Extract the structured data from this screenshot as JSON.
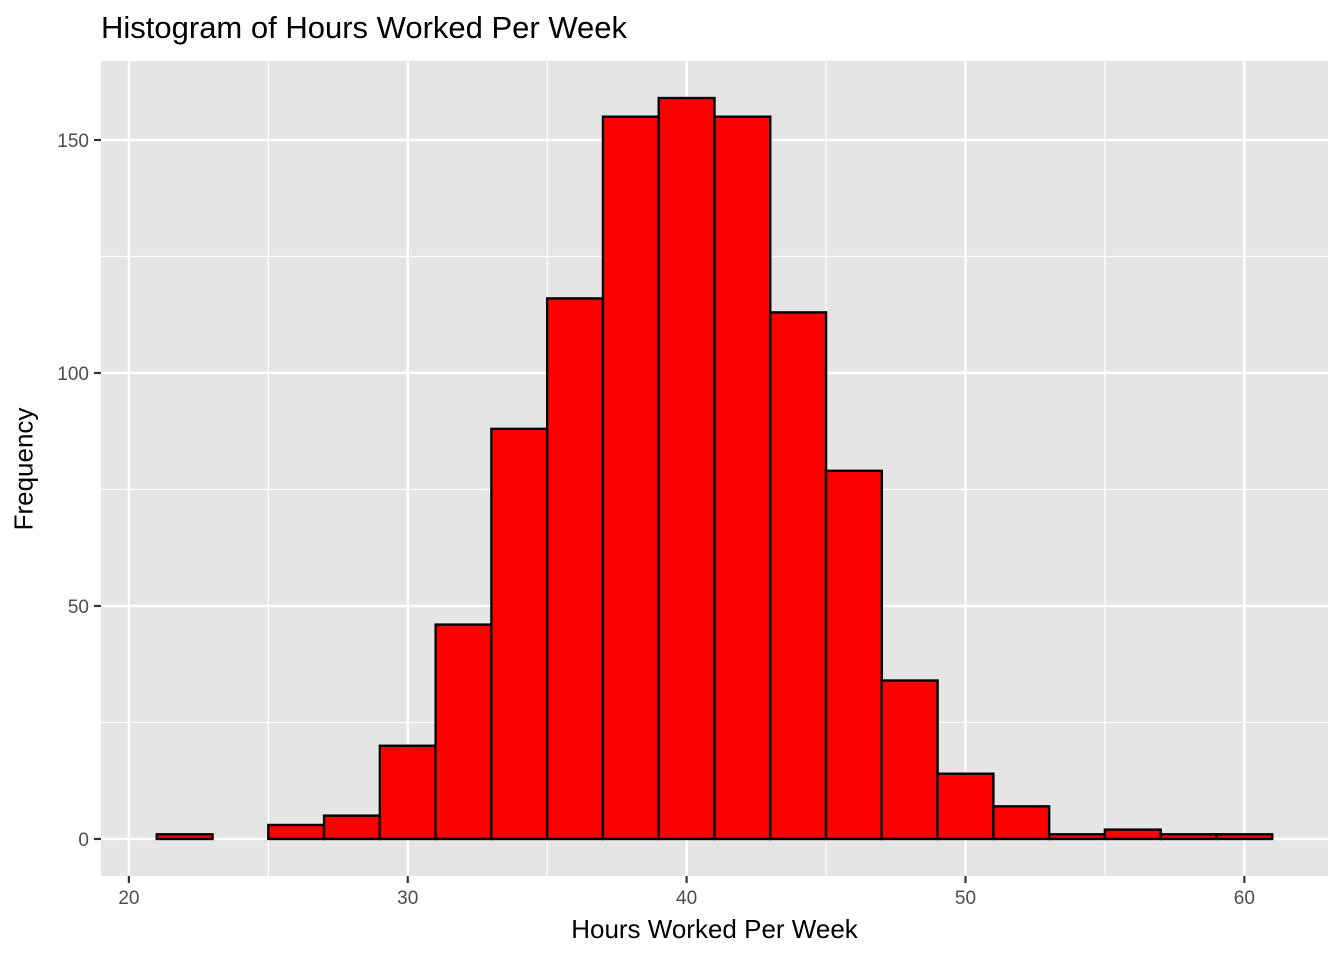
{
  "chart_data": {
    "type": "bar",
    "title": "Histogram of Hours Worked Per Week",
    "xlabel": "Hours Worked Per Week",
    "ylabel": "Frequency",
    "bin_width": 2,
    "bins": [
      {
        "start": 21,
        "end": 23,
        "count": 1
      },
      {
        "start": 23,
        "end": 25,
        "count": 0
      },
      {
        "start": 25,
        "end": 27,
        "count": 3
      },
      {
        "start": 27,
        "end": 29,
        "count": 5
      },
      {
        "start": 29,
        "end": 31,
        "count": 20
      },
      {
        "start": 31,
        "end": 33,
        "count": 46
      },
      {
        "start": 33,
        "end": 35,
        "count": 88
      },
      {
        "start": 35,
        "end": 37,
        "count": 116
      },
      {
        "start": 37,
        "end": 39,
        "count": 155
      },
      {
        "start": 39,
        "end": 41,
        "count": 159
      },
      {
        "start": 41,
        "end": 43,
        "count": 155
      },
      {
        "start": 43,
        "end": 45,
        "count": 113
      },
      {
        "start": 45,
        "end": 47,
        "count": 79
      },
      {
        "start": 47,
        "end": 49,
        "count": 34
      },
      {
        "start": 49,
        "end": 51,
        "count": 14
      },
      {
        "start": 51,
        "end": 53,
        "count": 7
      },
      {
        "start": 53,
        "end": 55,
        "count": 1
      },
      {
        "start": 55,
        "end": 57,
        "count": 2
      },
      {
        "start": 57,
        "end": 59,
        "count": 1
      },
      {
        "start": 59,
        "end": 61,
        "count": 1
      }
    ],
    "xlim": [
      19,
      63
    ],
    "ylim": [
      -7.95,
      166.95
    ],
    "x_ticks": [
      20,
      30,
      40,
      50,
      60
    ],
    "y_ticks": [
      0,
      50,
      100,
      150
    ],
    "grid": true,
    "colors": {
      "bar_fill": "#ff0000",
      "bar_stroke": "#000000",
      "panel_background": "#e5e5e5",
      "grid": "#ffffff",
      "tick_text": "#4d4d4d",
      "axis_tick": "#333333"
    }
  }
}
